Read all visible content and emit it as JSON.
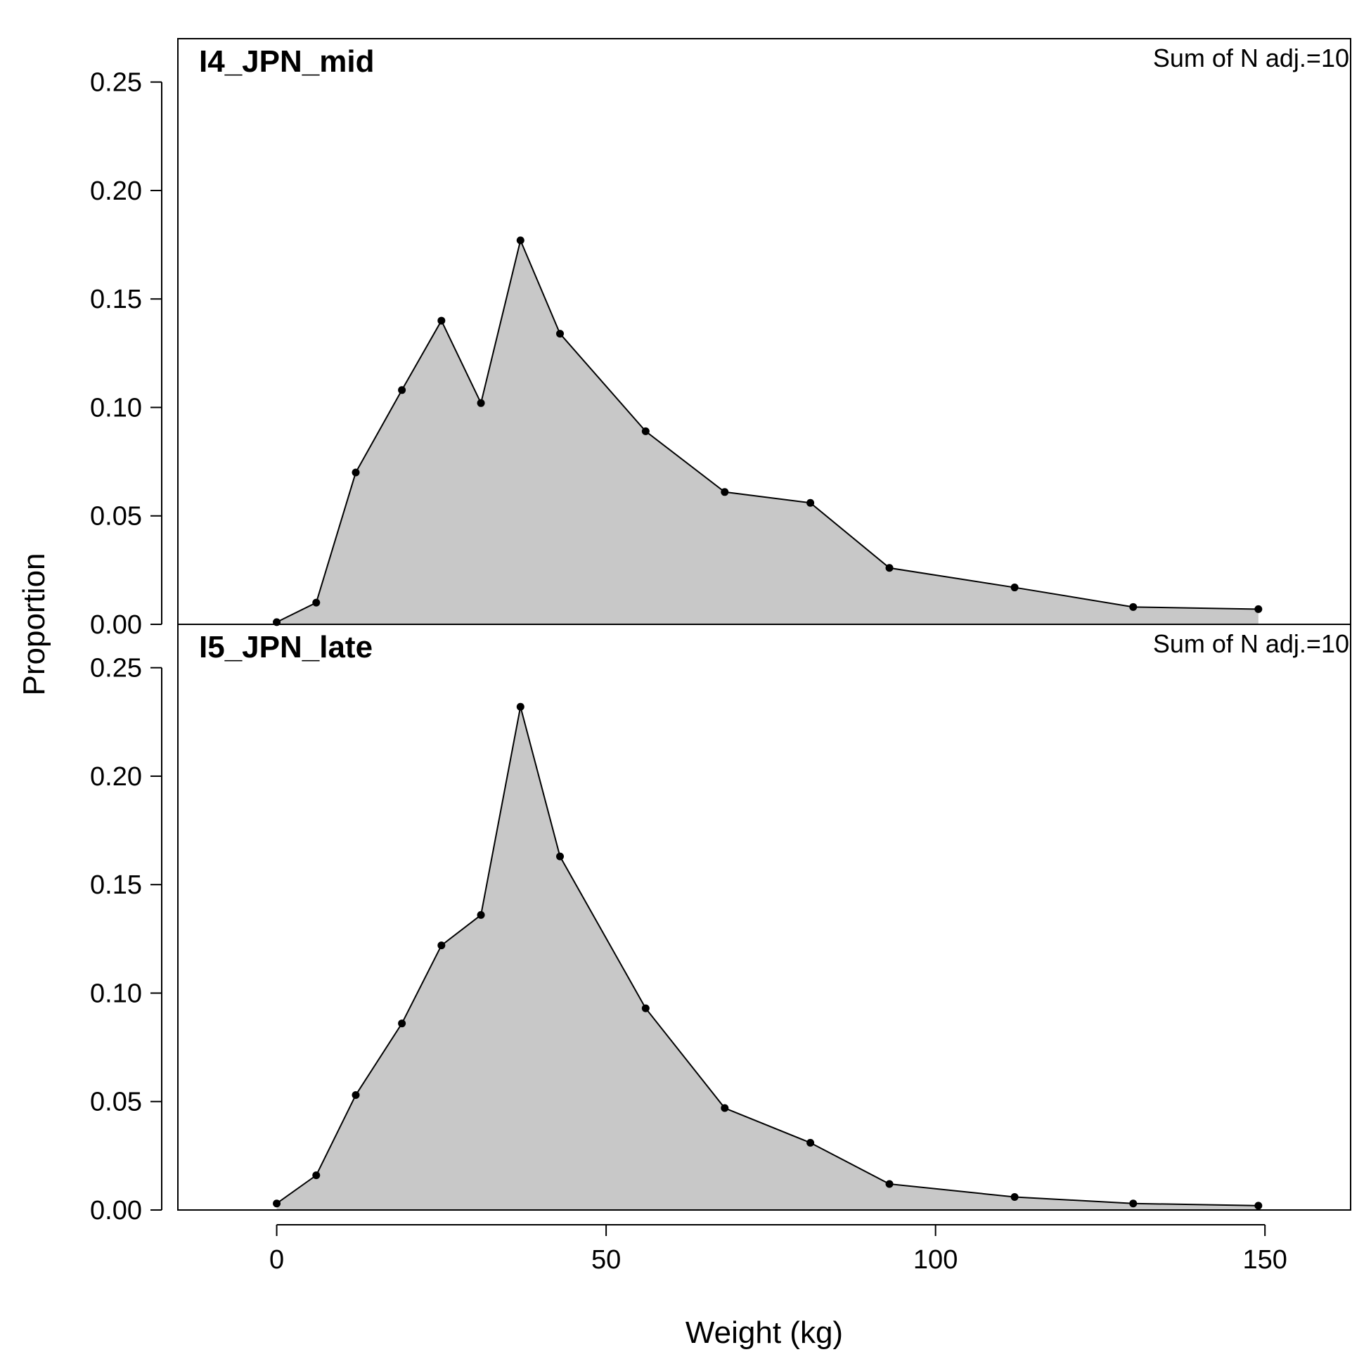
{
  "chart_data": [
    {
      "type": "area",
      "title": "I4_JPN_mid",
      "annotation": "Sum of N adj.=10",
      "xlim": [
        -15,
        163
      ],
      "ylim": [
        0,
        0.27
      ],
      "yticks": [
        "0.00",
        "0.05",
        "0.10",
        "0.15",
        "0.20",
        "0.25"
      ],
      "fill_color": "#c8c8c8",
      "line_color": "#000000",
      "x": [
        0,
        6,
        12,
        19,
        25,
        31,
        37,
        43,
        56,
        68,
        81,
        93,
        112,
        130,
        149
      ],
      "values": [
        0.001,
        0.01,
        0.07,
        0.108,
        0.14,
        0.102,
        0.177,
        0.134,
        0.089,
        0.061,
        0.056,
        0.026,
        0.017,
        0.008,
        0.007
      ]
    },
    {
      "type": "area",
      "title": "I5_JPN_late",
      "annotation": "Sum of N adj.=10",
      "xlim": [
        -15,
        163
      ],
      "ylim": [
        0,
        0.27
      ],
      "yticks": [
        "0.00",
        "0.05",
        "0.10",
        "0.15",
        "0.20",
        "0.25"
      ],
      "xticks": [
        "0",
        "50",
        "100",
        "150"
      ],
      "xlabel": "Weight (kg)",
      "fill_color": "#c8c8c8",
      "line_color": "#000000",
      "x": [
        0,
        6,
        12,
        19,
        25,
        31,
        37,
        43,
        56,
        68,
        81,
        93,
        112,
        130,
        149
      ],
      "values": [
        0.003,
        0.016,
        0.053,
        0.086,
        0.122,
        0.136,
        0.232,
        0.163,
        0.093,
        0.047,
        0.031,
        0.012,
        0.006,
        0.003,
        0.002
      ]
    }
  ],
  "ylabel": "Proportion"
}
